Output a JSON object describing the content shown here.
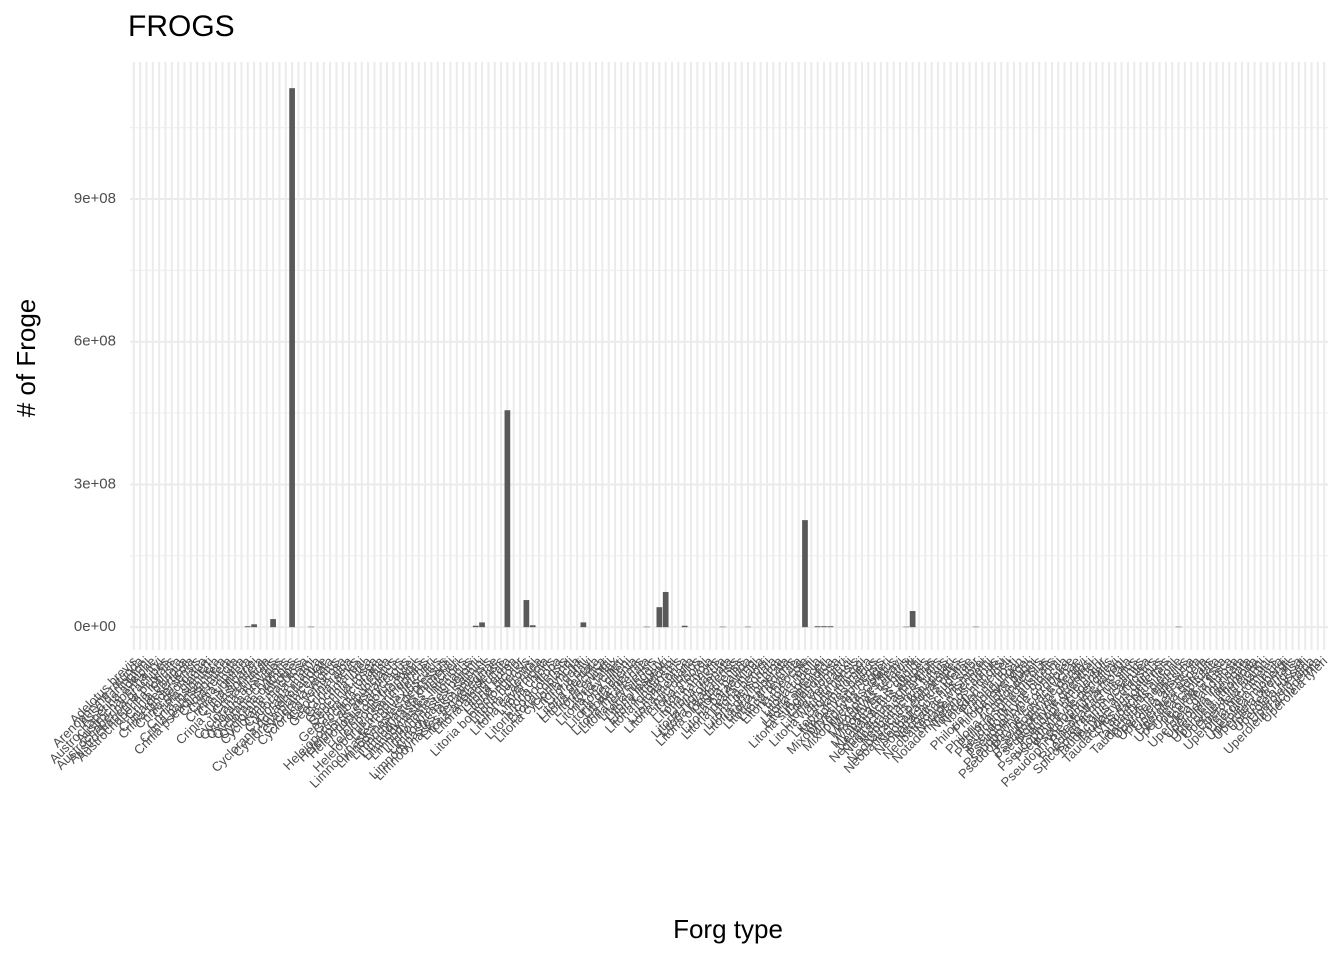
{
  "chart_data": {
    "type": "bar",
    "title": "FROGS",
    "x_label": "Forg type",
    "y_label": "# of Froge",
    "categories": [
      "Adelotus brevis",
      "Arenophryne rotunda",
      "Assa darlingtoni",
      "Austrochaperina adelphe",
      "Austrochaperina fryi",
      "Austrochaperina gracilipes",
      "Austrochaperina pluvialis",
      "Austrochaperina robusta",
      "Crinia bilingua",
      "Crinia deserticola",
      "Crinia flindersensis",
      "Crinia georgiana",
      "Crinia glauerti",
      "Crinia insignifera",
      "Crinia parinsignifera",
      "Crinia pseudinsignifera",
      "Crinia remota",
      "Crinia riparia",
      "Crinia signifera",
      "Crinia sloanei",
      "Crinia subinsignifera",
      "Crinia tinnula",
      "Cyclorana australis",
      "Cyclorana brevipes",
      "Cyclorana cryptotis",
      "Cyclorana cultripes",
      "Cyclorana longipes",
      "Cyclorana maculosa",
      "Cyclorana maini",
      "Cyclorana manya",
      "Cyclorana novaehollandiae",
      "Cyclorana platycephala",
      "Cyclorana vagitus",
      "Cyclorana verrucosa",
      "Geocrinia alba",
      "Geocrinia laevis",
      "Geocrinia leai",
      "Geocrinia lutea",
      "Geocrinia rosea",
      "Geocrinia victoriana",
      "Geocrinia vitellina",
      "Heleioporus albopunctatus",
      "Heleioporus australiacus",
      "Heleioporus barycragus",
      "Heleioporus eyrei",
      "Heleioporus inornatus",
      "Heleioporus psammophilus",
      "Lechriodus fletcheri",
      "Limnodynastes convexiusculus",
      "Limnodynastes depressus",
      "Limnodynastes dumerilii",
      "Limnodynastes fletcheri",
      "Limnodynastes interioris",
      "Limnodynastes lignarius",
      "Limnodynastes peronii",
      "Limnodynastes salmini",
      "Limnodynastes tasmaniensis",
      "Limnodynastes terraereginae",
      "Litoria adelaidensis",
      "Litoria alboguttata",
      "Litoria aurea",
      "Litoria bicolor",
      "Litoria booroolongensis",
      "Litoria burrowsi",
      "Litoria caerulea",
      "Litoria cavernicola",
      "Litoria chloris",
      "Litoria citropa",
      "Litoria cooloolensis",
      "Litoria coplandi",
      "Litoria cyclorhyncha",
      "Litoria dahlii",
      "Litoria dayi",
      "Litoria dentata",
      "Litoria electrica",
      "Litoria ewingii",
      "Litoria fallax",
      "Litoria freycineti",
      "Litoria gilleni",
      "Litoria gracilenta",
      "Litoria inermis",
      "Litoria infrafrenata",
      "Litoria jervisiensis",
      "Litoria jungguy",
      "Litoria lesueuri",
      "Litoria littlejohni",
      "Litoria longirostris",
      "Litoria lorica",
      "Litoria meiriana",
      "Litoria microbelos",
      "Litoria moorei",
      "Litoria myola",
      "Litoria nannotis",
      "Litoria nasuta",
      "Litoria nigrofrenata",
      "Litoria nyakalensis",
      "Litoria olongburensis",
      "Litoria pallida",
      "Litoria paraewingi",
      "Litoria pearsoniana",
      "Litoria peronii",
      "Litoria personata",
      "Litoria phyllochroa",
      "Litoria piperata",
      "Litoria raniformis",
      "Litoria revelata",
      "Litoria rheocola",
      "Litoria rothii",
      "Litoria rubella",
      "Litoria spenceri",
      "Litoria splendida",
      "Litoria subglandulosa",
      "Litoria tornieri",
      "Litoria verreauxii",
      "Litoria watjulumensis",
      "Litoria wilcoxii",
      "Litoria xanthomera",
      "Mixophyes balbus",
      "Mixophyes carbinensis",
      "Mixophyes coggeri",
      "Mixophyes fasciolatus",
      "Mixophyes fleayi",
      "Mixophyes iteratus",
      "Mixophyes schevilli",
      "Myobatrachus gouldii",
      "Neobatrachus albipes",
      "Neobatrachus aquilonius",
      "Neobatrachus centralis",
      "Neobatrachus fulvus",
      "Neobatrachus kunapalari",
      "Neobatrachus pelobatoides",
      "Neobatrachus pictus",
      "Neobatrachus sudellae",
      "Neobatrachus sutor",
      "Neobatrachus wilsmorei",
      "Notaden bennettii",
      "Notaden melanoscaphus",
      "Notaden nichollsi",
      "Notaden weigeli",
      "Philoria frosti",
      "Philoria kundagungan",
      "Philoria loveridgei",
      "Philoria pughi",
      "Philoria richmondensis",
      "Philoria sphagnicolus",
      "Pseudophryne australis",
      "Pseudophryne bibronii",
      "Pseudophryne coriacea",
      "Pseudophryne corroboree",
      "Pseudophryne covacevichae",
      "Pseudophryne dendyi",
      "Pseudophryne douglasi",
      "Pseudophryne guentheri",
      "Pseudophryne major",
      "Pseudophryne occidentalis",
      "Pseudophryne pengilleyi",
      "Pseudophryne raveni",
      "Pseudophryne semimarmorata",
      "Rheobatrachus silus",
      "Rheobatrachus vitellinus",
      "Spicospina flammocaerulea",
      "Taudactylus acutirostris",
      "Taudactylus diurnus",
      "Taudactylus eungellensis",
      "Taudactylus liemi",
      "Taudactylus pleione",
      "Taudactylus rheophilus",
      "Uperoleia altissima",
      "Uperoleia arenicola",
      "Uperoleia aspera",
      "Uperoleia borealis",
      "Uperoleia capitulata",
      "Uperoleia crassa",
      "Uperoleia fusca",
      "Uperoleia glandulosa",
      "Uperoleia inundata",
      "Uperoleia laevigata",
      "Uperoleia lithomoda",
      "Uperoleia littlejohni",
      "Uperoleia martini",
      "Uperoleia micromeles",
      "Uperoleia mimula",
      "Uperoleia mjobergii",
      "Uperoleia orientalis",
      "Uperoleia rugosa",
      "Uperoleia russelli",
      "Uperoleia talpa",
      "Uperoleia trachyderma",
      "Uperoleia tyleri"
    ],
    "values": [
      0,
      0,
      0,
      0,
      0,
      0,
      0,
      0,
      0,
      0,
      0,
      0,
      0,
      0,
      0,
      0,
      0,
      0,
      2000000,
      6000000,
      0,
      0,
      17000000,
      0,
      0,
      1133000000,
      0,
      0,
      1000000,
      0,
      0,
      0,
      0,
      0,
      0,
      0,
      0,
      0,
      0,
      0,
      0,
      0,
      0,
      0,
      0,
      0,
      0,
      0,
      0,
      0,
      0,
      0,
      0,
      0,
      3000000,
      10000000,
      0,
      0,
      0,
      456000000,
      0,
      0,
      57000000,
      4000000,
      0,
      0,
      0,
      0,
      0,
      0,
      0,
      10000000,
      0,
      0,
      0,
      0,
      0,
      0,
      0,
      0,
      0,
      1000000,
      0,
      42000000,
      74000000,
      0,
      0,
      3000000,
      0,
      0,
      0,
      0,
      0,
      1000000,
      0,
      0,
      0,
      1000000,
      0,
      0,
      0,
      0,
      0,
      0,
      0,
      0,
      225000000,
      0,
      2000000,
      2000000,
      2000000,
      0,
      0,
      0,
      0,
      0,
      0,
      0,
      0,
      0,
      0,
      0,
      1000000,
      34000000,
      0,
      0,
      0,
      0,
      0,
      0,
      0,
      0,
      0,
      1000000,
      0,
      0,
      0,
      0,
      0,
      0,
      0,
      0,
      0,
      0,
      0,
      0,
      0,
      0,
      0,
      0,
      0,
      0,
      0,
      0,
      0,
      0,
      0,
      0,
      0,
      0,
      0,
      0,
      0,
      0,
      0,
      1000000,
      0,
      0,
      0,
      0,
      0,
      0,
      0,
      0,
      0,
      0,
      0,
      0,
      0,
      0,
      0,
      0,
      0,
      0,
      0,
      0,
      0,
      0,
      0
    ],
    "color": "#595959",
    "ylim": [
      -48000000,
      1188000000
    ],
    "yticks": [
      {
        "value": 0,
        "label": "0e+00"
      },
      {
        "value": 300000000,
        "label": "3e+08"
      },
      {
        "value": 600000000,
        "label": "6e+08"
      },
      {
        "value": 900000000,
        "label": "9e+08"
      }
    ],
    "grid": true
  }
}
